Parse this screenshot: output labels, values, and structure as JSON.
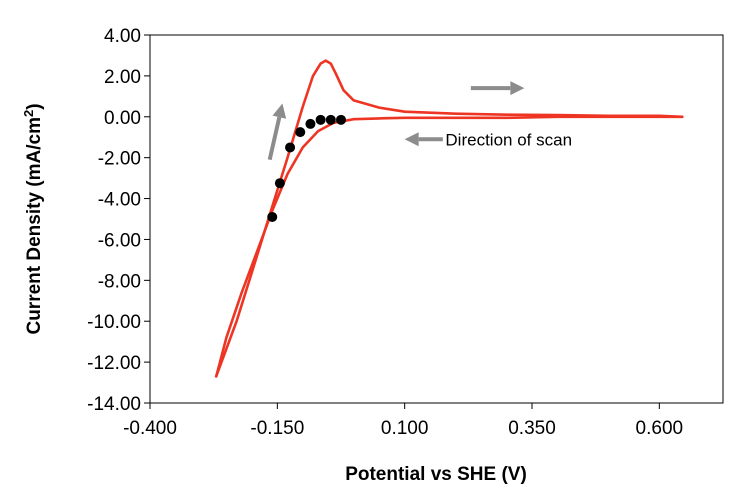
{
  "chart_data": {
    "type": "line",
    "title": "",
    "xlabel": "Potential vs SHE (V)",
    "ylabel_main": "Current Density (mA/cm",
    "ylabel_sup": "2",
    "ylabel_end": ")",
    "xlim": [
      -0.4,
      0.725
    ],
    "ylim": [
      -14,
      4
    ],
    "x_ticks": [
      -0.4,
      -0.15,
      0.1,
      0.35,
      0.6
    ],
    "x_tick_labels": [
      "-0.400",
      "-0.150",
      "0.100",
      "0.350",
      "0.600"
    ],
    "y_ticks": [
      4,
      2,
      0,
      -2,
      -4,
      -6,
      -8,
      -10,
      -12,
      -14
    ],
    "y_tick_labels": [
      "4.00",
      "2.00",
      "0.00",
      "-2.00",
      "-4.00",
      "-6.00",
      "-8.00",
      "-10.00",
      "-12.00",
      "-14.00"
    ],
    "grid": false,
    "colors": {
      "curve": "#ee3524",
      "points": "#000000",
      "arrows": "#8c8c8c"
    },
    "series": [
      {
        "style": "line",
        "x": [
          -0.27,
          -0.23,
          -0.19,
          -0.16,
          -0.13,
          -0.1,
          -0.08,
          -0.065,
          -0.055,
          -0.045,
          -0.035,
          -0.02,
          0.0,
          0.05,
          0.1,
          0.2,
          0.3,
          0.4,
          0.5,
          0.6,
          0.645
        ],
        "y": [
          -12.7,
          -10.0,
          -6.8,
          -4.4,
          -2.0,
          0.5,
          2.0,
          2.6,
          2.75,
          2.6,
          2.1,
          1.3,
          0.8,
          0.45,
          0.25,
          0.15,
          0.1,
          0.08,
          0.05,
          0.05,
          0.0
        ]
      },
      {
        "style": "line",
        "x": [
          0.645,
          0.5,
          0.4,
          0.3,
          0.2,
          0.1,
          0.05,
          0.0,
          -0.04,
          -0.07,
          -0.1,
          -0.13,
          -0.16,
          -0.19,
          -0.22,
          -0.25,
          -0.27
        ],
        "y": [
          0.0,
          0.0,
          0.0,
          -0.05,
          -0.05,
          -0.05,
          -0.08,
          -0.12,
          -0.3,
          -0.7,
          -1.5,
          -2.8,
          -4.6,
          -6.6,
          -8.6,
          -10.8,
          -12.7
        ]
      },
      {
        "style": "scatter",
        "x": [
          -0.16,
          -0.145,
          -0.125,
          -0.105,
          -0.085,
          -0.065,
          -0.045,
          -0.025
        ],
        "y": [
          -4.9,
          -3.25,
          -1.5,
          -0.75,
          -0.35,
          -0.15,
          -0.15,
          -0.15
        ]
      }
    ],
    "annotations": [
      {
        "text": "Direction of scan",
        "x": 0.18,
        "y": -1.1
      }
    ],
    "arrows": [
      {
        "from": [
          -0.165,
          -2.1
        ],
        "to": [
          -0.14,
          0.65
        ]
      },
      {
        "from": [
          0.23,
          1.4
        ],
        "to": [
          0.335,
          1.4
        ]
      },
      {
        "from": [
          0.175,
          -1.1
        ],
        "to": [
          0.1,
          -1.1
        ]
      }
    ]
  }
}
